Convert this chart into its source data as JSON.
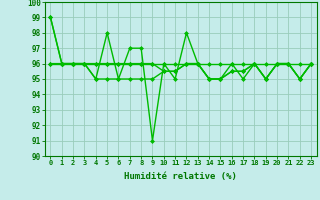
{
  "xlabel": "Humidité relative (%)",
  "background_color": "#c5ecea",
  "grid_color": "#99ccbb",
  "line_color": "#00bb00",
  "x": [
    0,
    1,
    2,
    3,
    4,
    5,
    6,
    7,
    8,
    9,
    10,
    11,
    12,
    13,
    14,
    15,
    16,
    17,
    18,
    19,
    20,
    21,
    22,
    23
  ],
  "series": [
    [
      99,
      96,
      96,
      96,
      95,
      98,
      95,
      97,
      97,
      91,
      96,
      95,
      98,
      96,
      95,
      95,
      96,
      95,
      96,
      95,
      96,
      96,
      95,
      96
    ],
    [
      99,
      96,
      96,
      96,
      95,
      95,
      95,
      95,
      95,
      95,
      95.5,
      95.5,
      96,
      96,
      95,
      95,
      95.5,
      95.5,
      96,
      95,
      96,
      96,
      95,
      96
    ],
    [
      96,
      96,
      96,
      96,
      96,
      96,
      96,
      96,
      96,
      96,
      96,
      96,
      96,
      96,
      96,
      96,
      96,
      96,
      96,
      96,
      96,
      96,
      96,
      96
    ],
    [
      96,
      96,
      96,
      96,
      96,
      96,
      96,
      96,
      96,
      96,
      95.5,
      95.5,
      96,
      96,
      95,
      95,
      95.5,
      95.5,
      96,
      95,
      96,
      96,
      95,
      96
    ]
  ],
  "ylim": [
    90,
    100
  ],
  "xlim": [
    -0.5,
    23.5
  ],
  "yticks": [
    90,
    91,
    92,
    93,
    94,
    95,
    96,
    97,
    98,
    99,
    100
  ],
  "xtick_labels": [
    "0",
    "1",
    "2",
    "3",
    "4",
    "5",
    "6",
    "7",
    "8",
    "9",
    "10",
    "11",
    "12",
    "13",
    "14",
    "15",
    "16",
    "17",
    "18",
    "19",
    "20",
    "21",
    "22",
    "23"
  ],
  "markersize": 2.5,
  "linewidth": 1.0
}
